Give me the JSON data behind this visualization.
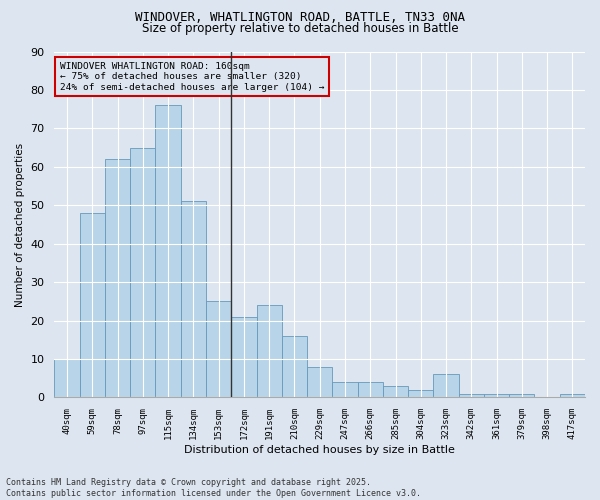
{
  "title_line1": "WINDOVER, WHATLINGTON ROAD, BATTLE, TN33 0NA",
  "title_line2": "Size of property relative to detached houses in Battle",
  "xlabel": "Distribution of detached houses by size in Battle",
  "ylabel": "Number of detached properties",
  "categories": [
    "40sqm",
    "59sqm",
    "78sqm",
    "97sqm",
    "115sqm",
    "134sqm",
    "153sqm",
    "172sqm",
    "191sqm",
    "210sqm",
    "229sqm",
    "247sqm",
    "266sqm",
    "285sqm",
    "304sqm",
    "323sqm",
    "342sqm",
    "361sqm",
    "379sqm",
    "398sqm",
    "417sqm"
  ],
  "values": [
    10,
    48,
    62,
    65,
    76,
    51,
    25,
    21,
    24,
    16,
    8,
    4,
    4,
    3,
    2,
    6,
    1,
    1,
    1,
    0,
    1
  ],
  "bar_color": "#b8d4e8",
  "bar_edge_color": "#6699bb",
  "vline_index": 6.5,
  "vline_color": "#333333",
  "annotation_title": "WINDOVER WHATLINGTON ROAD: 160sqm",
  "annotation_line2": "← 75% of detached houses are smaller (320)",
  "annotation_line3": "24% of semi-detached houses are larger (104) →",
  "annotation_box_color": "#cc0000",
  "ylim": [
    0,
    90
  ],
  "yticks": [
    0,
    10,
    20,
    30,
    40,
    50,
    60,
    70,
    80,
    90
  ],
  "background_color": "#dde6f0",
  "grid_color": "#ffffff",
  "footnote_line1": "Contains HM Land Registry data © Crown copyright and database right 2025.",
  "footnote_line2": "Contains public sector information licensed under the Open Government Licence v3.0."
}
